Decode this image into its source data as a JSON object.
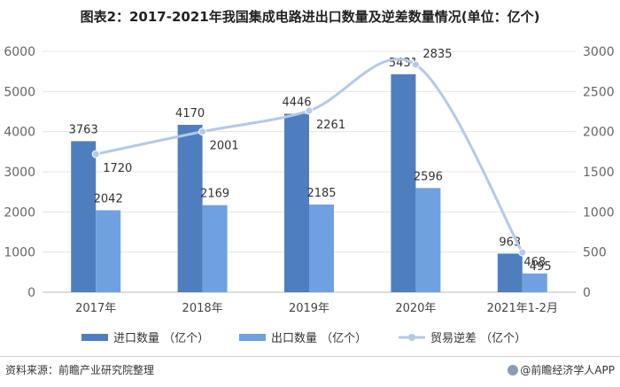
{
  "title": "图表2：2017-2021年我国集成电路进出口数量及逆差数量情况(单位：亿个)",
  "source": "资料来源：前瞻产业研究院整理",
  "brand": "@前瞻经济学人APP",
  "colors": {
    "import": "#4f7ebf",
    "export": "#6fa1e0",
    "deficit": "#b4c9e8",
    "axis": "#666666",
    "grid": "#e4e4e4"
  },
  "chart_data": {
    "type": "bar",
    "categories": [
      "2017年",
      "2018年",
      "2019年",
      "2020年",
      "2021年1-2月"
    ],
    "series": [
      {
        "name": "进口数量 （亿个）",
        "type": "bar",
        "axis": "left",
        "values": [
          3763,
          4170,
          4446,
          5431,
          963
        ]
      },
      {
        "name": "出口数量 （亿个）",
        "type": "bar",
        "axis": "left",
        "values": [
          2042,
          2169,
          2185,
          2596,
          468
        ]
      },
      {
        "name": "贸易逆差 （亿个）",
        "type": "line",
        "axis": "right",
        "values": [
          1720,
          2001,
          2261,
          2835,
          495
        ]
      }
    ],
    "ylim_left": [
      0,
      6000
    ],
    "yticks_left": [
      0,
      1000,
      2000,
      3000,
      4000,
      5000,
      6000
    ],
    "ylim_right": [
      0,
      3000
    ],
    "yticks_right": [
      0,
      500,
      1000,
      1500,
      2000,
      2500,
      3000
    ],
    "legend_position": "bottom"
  }
}
